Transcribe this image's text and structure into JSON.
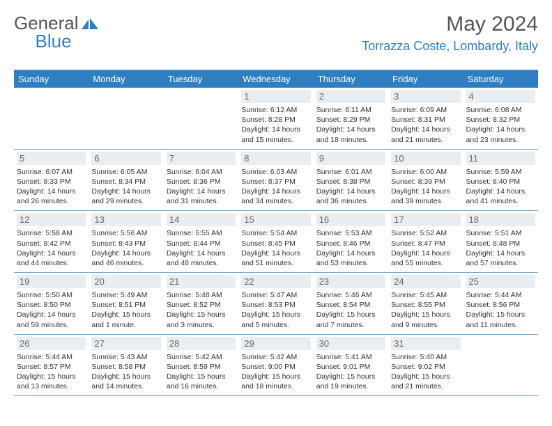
{
  "brand": {
    "word1": "General",
    "word2": "Blue"
  },
  "title": "May 2024",
  "location": "Torrazza Coste, Lombardy, Italy",
  "colors": {
    "header_bg": "#2d7fc1",
    "header_text": "#ffffff",
    "daynum_bg": "#e9eef3",
    "rule": "#7fa8c9",
    "brand_blue": "#2d7fc1"
  },
  "weekdays": [
    "Sunday",
    "Monday",
    "Tuesday",
    "Wednesday",
    "Thursday",
    "Friday",
    "Saturday"
  ],
  "weeks": [
    [
      null,
      null,
      null,
      {
        "n": "1",
        "sr": "6:12 AM",
        "ss": "8:28 PM",
        "dl": "14 hours and 15 minutes."
      },
      {
        "n": "2",
        "sr": "6:11 AM",
        "ss": "8:29 PM",
        "dl": "14 hours and 18 minutes."
      },
      {
        "n": "3",
        "sr": "6:09 AM",
        "ss": "8:31 PM",
        "dl": "14 hours and 21 minutes."
      },
      {
        "n": "4",
        "sr": "6:08 AM",
        "ss": "8:32 PM",
        "dl": "14 hours and 23 minutes."
      }
    ],
    [
      {
        "n": "5",
        "sr": "6:07 AM",
        "ss": "8:33 PM",
        "dl": "14 hours and 26 minutes."
      },
      {
        "n": "6",
        "sr": "6:05 AM",
        "ss": "8:34 PM",
        "dl": "14 hours and 29 minutes."
      },
      {
        "n": "7",
        "sr": "6:04 AM",
        "ss": "8:36 PM",
        "dl": "14 hours and 31 minutes."
      },
      {
        "n": "8",
        "sr": "6:03 AM",
        "ss": "8:37 PM",
        "dl": "14 hours and 34 minutes."
      },
      {
        "n": "9",
        "sr": "6:01 AM",
        "ss": "8:38 PM",
        "dl": "14 hours and 36 minutes."
      },
      {
        "n": "10",
        "sr": "6:00 AM",
        "ss": "8:39 PM",
        "dl": "14 hours and 39 minutes."
      },
      {
        "n": "11",
        "sr": "5:59 AM",
        "ss": "8:40 PM",
        "dl": "14 hours and 41 minutes."
      }
    ],
    [
      {
        "n": "12",
        "sr": "5:58 AM",
        "ss": "8:42 PM",
        "dl": "14 hours and 44 minutes."
      },
      {
        "n": "13",
        "sr": "5:56 AM",
        "ss": "8:43 PM",
        "dl": "14 hours and 46 minutes."
      },
      {
        "n": "14",
        "sr": "5:55 AM",
        "ss": "8:44 PM",
        "dl": "14 hours and 48 minutes."
      },
      {
        "n": "15",
        "sr": "5:54 AM",
        "ss": "8:45 PM",
        "dl": "14 hours and 51 minutes."
      },
      {
        "n": "16",
        "sr": "5:53 AM",
        "ss": "8:46 PM",
        "dl": "14 hours and 53 minutes."
      },
      {
        "n": "17",
        "sr": "5:52 AM",
        "ss": "8:47 PM",
        "dl": "14 hours and 55 minutes."
      },
      {
        "n": "18",
        "sr": "5:51 AM",
        "ss": "8:48 PM",
        "dl": "14 hours and 57 minutes."
      }
    ],
    [
      {
        "n": "19",
        "sr": "5:50 AM",
        "ss": "8:50 PM",
        "dl": "14 hours and 59 minutes."
      },
      {
        "n": "20",
        "sr": "5:49 AM",
        "ss": "8:51 PM",
        "dl": "15 hours and 1 minute."
      },
      {
        "n": "21",
        "sr": "5:48 AM",
        "ss": "8:52 PM",
        "dl": "15 hours and 3 minutes."
      },
      {
        "n": "22",
        "sr": "5:47 AM",
        "ss": "8:53 PM",
        "dl": "15 hours and 5 minutes."
      },
      {
        "n": "23",
        "sr": "5:46 AM",
        "ss": "8:54 PM",
        "dl": "15 hours and 7 minutes."
      },
      {
        "n": "24",
        "sr": "5:45 AM",
        "ss": "8:55 PM",
        "dl": "15 hours and 9 minutes."
      },
      {
        "n": "25",
        "sr": "5:44 AM",
        "ss": "8:56 PM",
        "dl": "15 hours and 11 minutes."
      }
    ],
    [
      {
        "n": "26",
        "sr": "5:44 AM",
        "ss": "8:57 PM",
        "dl": "15 hours and 13 minutes."
      },
      {
        "n": "27",
        "sr": "5:43 AM",
        "ss": "8:58 PM",
        "dl": "15 hours and 14 minutes."
      },
      {
        "n": "28",
        "sr": "5:42 AM",
        "ss": "8:59 PM",
        "dl": "15 hours and 16 minutes."
      },
      {
        "n": "29",
        "sr": "5:42 AM",
        "ss": "9:00 PM",
        "dl": "15 hours and 18 minutes."
      },
      {
        "n": "30",
        "sr": "5:41 AM",
        "ss": "9:01 PM",
        "dl": "15 hours and 19 minutes."
      },
      {
        "n": "31",
        "sr": "5:40 AM",
        "ss": "9:02 PM",
        "dl": "15 hours and 21 minutes."
      },
      null
    ]
  ],
  "labels": {
    "sunrise": "Sunrise:",
    "sunset": "Sunset:",
    "daylight": "Daylight:"
  }
}
